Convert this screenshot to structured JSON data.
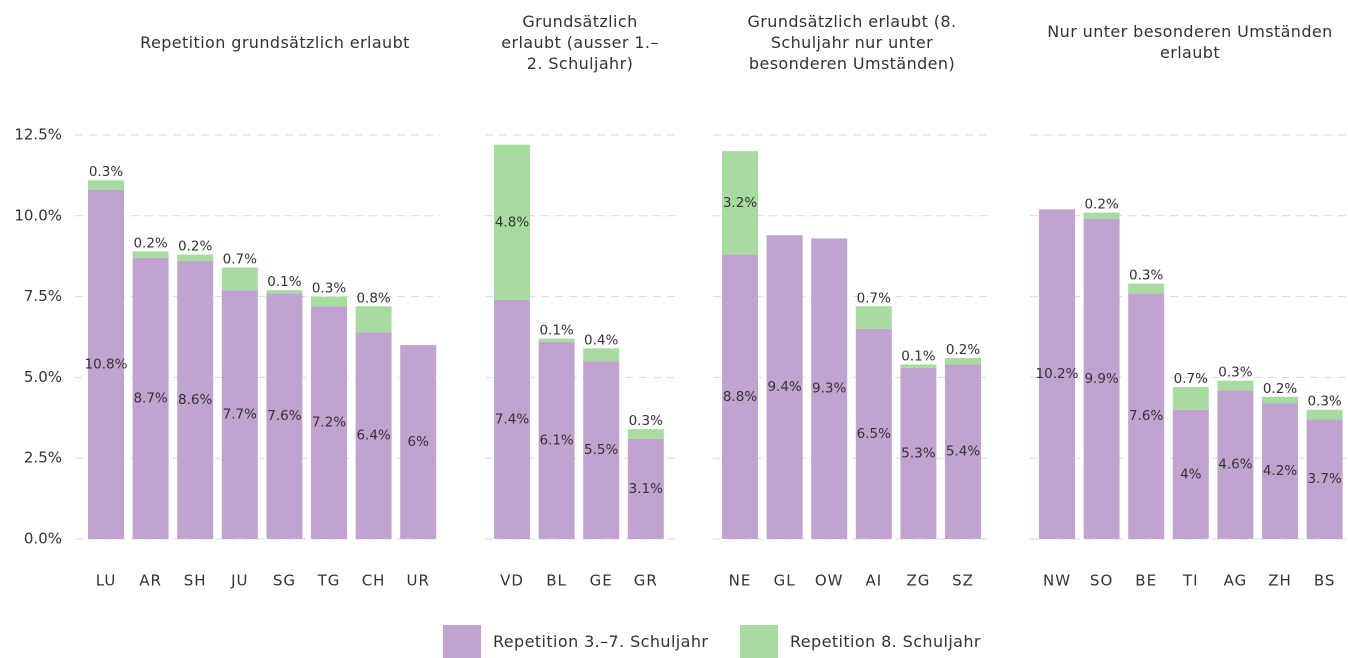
{
  "chart_data": [
    {
      "type": "bar",
      "title": "Repetition grundsätzlich erlaubt",
      "categories": [
        "LU",
        "AR",
        "SH",
        "JU",
        "SG",
        "TG",
        "CH",
        "UR"
      ],
      "series": [
        {
          "name": "Repetition 3.–7. Schuljahr",
          "color": "#c0a3cf",
          "values": [
            10.8,
            8.7,
            8.6,
            7.7,
            7.6,
            7.2,
            6.4,
            6
          ],
          "value_labels": [
            "10.8%",
            "8.7%",
            "8.6%",
            "7.7%",
            "7.6%",
            "7.2%",
            "6.4%",
            "6%"
          ]
        },
        {
          "name": "Repetition 8. Schuljahr",
          "color": "#a8dba0",
          "values": [
            0.3,
            0.2,
            0.2,
            0.7,
            0.1,
            0.3,
            0.8,
            null
          ],
          "value_labels": [
            "0.3%",
            "0.2%",
            "0.2%",
            "0.7%",
            "0.1%",
            "0.3%",
            "0.8%",
            null
          ]
        }
      ],
      "ylim": [
        0,
        12.5
      ],
      "yticks": [
        {
          "value": 0,
          "label": "0.0%"
        },
        {
          "value": 2.5,
          "label": "2.5%"
        },
        {
          "value": 5,
          "label": "5.0%"
        },
        {
          "value": 7.5,
          "label": "7.5%"
        },
        {
          "value": 10,
          "label": "10.0%"
        },
        {
          "value": 12.5,
          "label": "12.5%"
        }
      ],
      "grid": true
    },
    {
      "type": "bar",
      "title": "Grundsätzlich erlaubt (ausser 1.–2. Schuljahr)",
      "categories": [
        "VD",
        "BL",
        "GE",
        "GR"
      ],
      "series": [
        {
          "color": "#c0a3cf",
          "values": [
            7.4,
            6.1,
            5.5,
            3.1
          ],
          "value_labels": [
            "7.4%",
            "6.1%",
            "5.5%",
            "3.1%"
          ]
        },
        {
          "color": "#a8dba0",
          "values": [
            4.8,
            0.1,
            0.4,
            0.3
          ],
          "value_labels": [
            "4.8%",
            "0.1%",
            "0.4%",
            "0.3%"
          ]
        }
      ],
      "ylim": [
        0,
        12.5
      ]
    },
    {
      "type": "bar",
      "title": "Grundsätzlich erlaubt (8. Schuljahr nur unter besonderen Umständen)",
      "categories": [
        "NE",
        "GL",
        "OW",
        "AI",
        "ZG",
        "SZ"
      ],
      "series": [
        {
          "color": "#c0a3cf",
          "values": [
            8.8,
            9.4,
            9.3,
            6.5,
            5.3,
            5.4
          ],
          "value_labels": [
            "8.8%",
            "9.4%",
            "9.3%",
            "6.5%",
            "5.3%",
            "5.4%"
          ]
        },
        {
          "color": "#a8dba0",
          "values": [
            3.2,
            null,
            null,
            0.7,
            0.1,
            0.2
          ],
          "value_labels": [
            "3.2%",
            null,
            null,
            "0.7%",
            "0.1%",
            "0.2%"
          ]
        }
      ],
      "ylim": [
        0,
        12.5
      ]
    },
    {
      "type": "bar",
      "title": "Nur unter besonderen Umständen erlaubt",
      "categories": [
        "NW",
        "SO",
        "BE",
        "TI",
        "AG",
        "ZH",
        "BS"
      ],
      "series": [
        {
          "color": "#c0a3cf",
          "values": [
            10.2,
            9.9,
            7.6,
            4,
            4.6,
            4.2,
            3.7
          ],
          "value_labels": [
            "10.2%",
            "9.9%",
            "7.6%",
            "4%",
            "4.6%",
            "4.2%",
            "3.7%"
          ]
        },
        {
          "color": "#a8dba0",
          "values": [
            null,
            0.2,
            0.3,
            0.7,
            0.3,
            0.2,
            0.3
          ],
          "value_labels": [
            null,
            "0.2%",
            "0.3%",
            "0.7%",
            "0.3%",
            "0.2%",
            "0.3%"
          ]
        }
      ],
      "ylim": [
        0,
        12.5
      ]
    }
  ]
}
